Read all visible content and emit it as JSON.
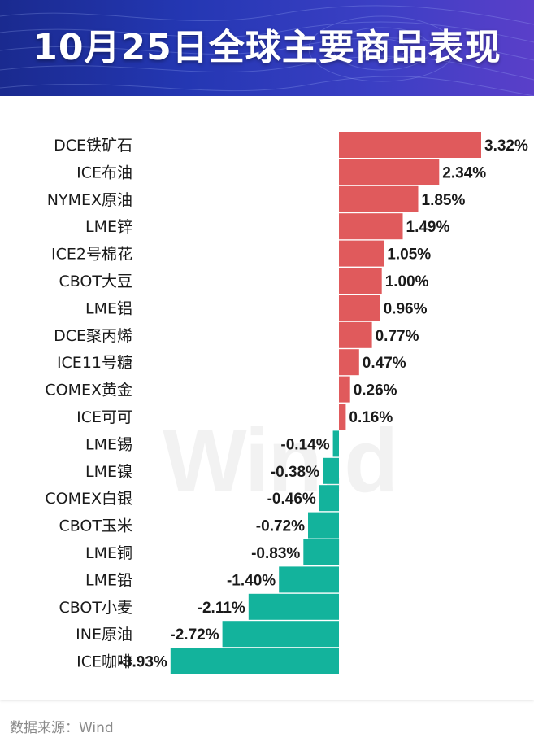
{
  "header": {
    "title": "10月25日全球主要商品表现"
  },
  "watermark": "Win.d",
  "footer": {
    "source": "数据来源：Wind"
  },
  "colors": {
    "positive": "#e05a5c",
    "negative": "#13b39c",
    "text": "#1a1a1a"
  },
  "chart_data": {
    "type": "bar",
    "orientation": "horizontal",
    "title": "10月25日全球主要商品表现",
    "unit": "%",
    "categories": [
      "DCE铁矿石",
      "ICE布油",
      "NYMEX原油",
      "LME锌",
      "ICE2号棉花",
      "CBOT大豆",
      "LME铝",
      "DCE聚丙烯",
      "ICE11号糖",
      "COMEX黄金",
      "ICE可可",
      "LME锡",
      "LME镍",
      "COMEX白银",
      "CBOT玉米",
      "LME铜",
      "LME铅",
      "CBOT小麦",
      "INE原油",
      "ICE咖啡"
    ],
    "values": [
      3.32,
      2.34,
      1.85,
      1.49,
      1.05,
      1.0,
      0.96,
      0.77,
      0.47,
      0.26,
      0.16,
      -0.14,
      -0.38,
      -0.46,
      -0.72,
      -0.83,
      -1.4,
      -2.11,
      -2.72,
      -3.93
    ],
    "labels": [
      "3.32%",
      "2.34%",
      "1.85%",
      "1.49%",
      "1.05%",
      "1.00%",
      "0.96%",
      "0.77%",
      "0.47%",
      "0.26%",
      "0.16%",
      "-0.14%",
      "-0.38%",
      "-0.46%",
      "-0.72%",
      "-0.83%",
      "-1.40%",
      "-2.11%",
      "-2.72%",
      "-3.93%"
    ]
  }
}
